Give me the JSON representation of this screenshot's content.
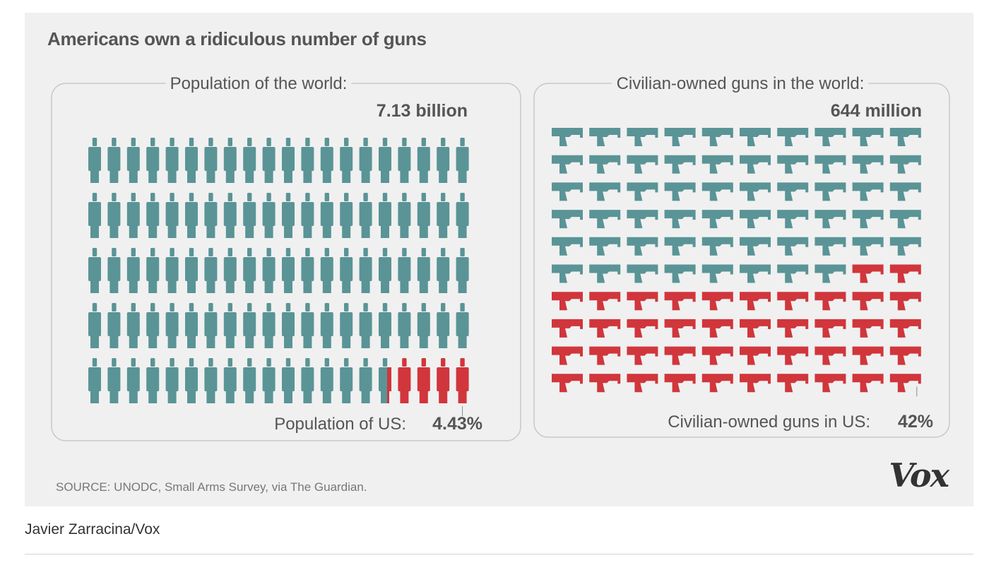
{
  "figure": {
    "title": "Americans own a ridiculous number of guns",
    "source": "SOURCE: UNODC, Small Arms Survey, via The Guardian.",
    "brand": "Vox"
  },
  "caption": {
    "credit": "Javier Zarracina/Vox"
  },
  "colors": {
    "world": "#5a9496",
    "us": "#d0363c",
    "text": "#555555",
    "frame": "#c8c8c8"
  },
  "chart_data": [
    {
      "type": "pictogram",
      "icon": "person-icon",
      "heading": "Population of the world:",
      "total_label": "7.13 billion",
      "highlight_label": "Population of US:",
      "highlight_value_label": "4.43%",
      "share_percent": 4.43,
      "rows": 5,
      "cols": 20,
      "total_icons": 100
    },
    {
      "type": "pictogram",
      "icon": "pistol-icon",
      "heading": "Civilian-owned guns in the world:",
      "total_label": "644 million",
      "highlight_label": "Civilian-owned guns in US:",
      "highlight_value_label": "42%",
      "share_percent": 42,
      "rows": 10,
      "cols": 10,
      "total_icons": 100
    }
  ]
}
